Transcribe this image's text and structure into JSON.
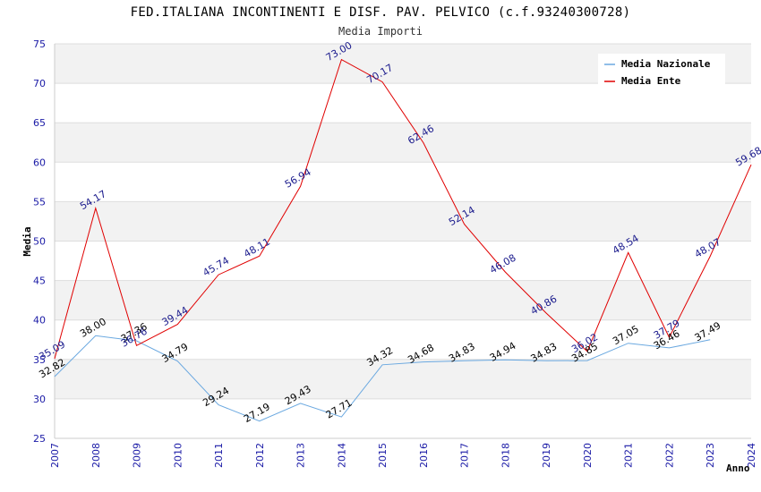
{
  "chart_data": {
    "type": "line",
    "title": "FED.ITALIANA INCONTINENTI E DISF. PAV. PELVICO (c.f.93240300728)",
    "subtitle": "Media Importi",
    "ylabel": "Media",
    "xlabel": "Anno",
    "ylim": [
      25,
      75
    ],
    "yticks": [
      25,
      30,
      35,
      40,
      45,
      50,
      55,
      60,
      65,
      70,
      75
    ],
    "categories": [
      "2007",
      "2008",
      "2009",
      "2010",
      "2011",
      "2012",
      "2013",
      "2014",
      "2015",
      "2016",
      "2017",
      "2018",
      "2019",
      "2020",
      "2021",
      "2022",
      "2023",
      "2024"
    ],
    "legend_position": "top-right",
    "grid": true,
    "series": [
      {
        "name": "Media Nazionale",
        "color": "#6aa8e0",
        "values": [
          32.82,
          38.0,
          37.36,
          34.79,
          29.24,
          27.19,
          29.43,
          27.71,
          34.32,
          34.68,
          34.83,
          34.94,
          34.83,
          34.85,
          37.05,
          36.46,
          37.49,
          null
        ],
        "labels": [
          "32.82",
          "38.00",
          "37.36",
          "34.79",
          "29.24",
          "27.19",
          "29.43",
          "27.71",
          "34.32",
          "34.68",
          "34.83",
          "34.94",
          "34.83",
          "34.85",
          "37.05",
          "36.46",
          "37.49",
          ""
        ]
      },
      {
        "name": "Media Ente",
        "color": "#e00000",
        "values": [
          35.09,
          54.17,
          36.76,
          39.44,
          45.74,
          48.11,
          56.94,
          73.0,
          70.17,
          62.46,
          52.14,
          46.08,
          40.86,
          36.02,
          48.54,
          37.79,
          48.07,
          59.68
        ],
        "labels": [
          "35.09",
          "54.17",
          "36.76",
          "39.44",
          "45.74",
          "48.11",
          "56.94",
          "73.00",
          "70.17",
          "62.46",
          "52.14",
          "46.08",
          "40.86",
          "36.02",
          "48.54",
          "37.79",
          "48.07",
          "59.68"
        ]
      }
    ]
  }
}
